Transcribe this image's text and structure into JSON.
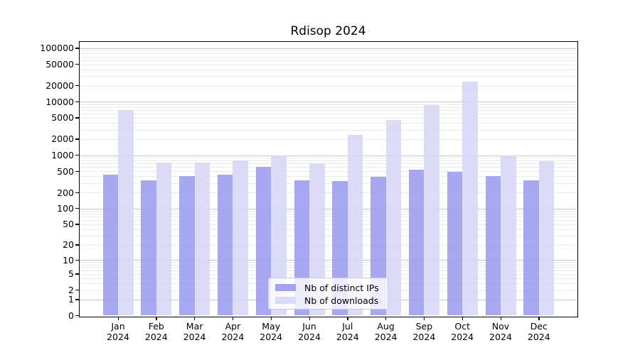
{
  "chart_data": {
    "type": "bar",
    "title": "Rdisop 2024",
    "categories": [
      "Jan",
      "Feb",
      "Mar",
      "Apr",
      "May",
      "Jun",
      "Jul",
      "Aug",
      "Sep",
      "Oct",
      "Nov",
      "Dec"
    ],
    "category_year": "2024",
    "series": [
      {
        "name": "Nb of distinct IPs",
        "color": "#9898f0",
        "values": [
          435,
          340,
          400,
          435,
          600,
          335,
          330,
          390,
          540,
          490,
          410,
          335
        ]
      },
      {
        "name": "Nb of downloads",
        "color": "#d6d6f8",
        "values": [
          6900,
          730,
          720,
          800,
          1000,
          710,
          2400,
          4500,
          8600,
          23500,
          990,
          780
        ]
      }
    ],
    "y_axis": {
      "scale": "log1p",
      "tick_values": [
        0,
        1,
        2,
        5,
        10,
        20,
        50,
        100,
        200,
        500,
        1000,
        2000,
        5000,
        10000,
        20000,
        50000,
        100000
      ],
      "tick_labels": [
        "0",
        "1",
        "2",
        "5",
        "10",
        "20",
        "50",
        "100",
        "200",
        "500",
        "1000",
        "2000",
        "5000",
        "10000",
        "20000",
        "50000",
        "100000"
      ],
      "ylim": [
        0,
        132000
      ]
    },
    "xlabel": "",
    "ylabel": "",
    "grid": {
      "enabled": true,
      "major_color": "#c6c6c6",
      "minor_color": "#eaeaea"
    },
    "legend": {
      "position": "lower-center",
      "entries": [
        "Nb of distinct IPs",
        "Nb of downloads"
      ]
    },
    "colors": {
      "axis": "#000000",
      "background": "#ffffff",
      "text": "#000000"
    }
  }
}
